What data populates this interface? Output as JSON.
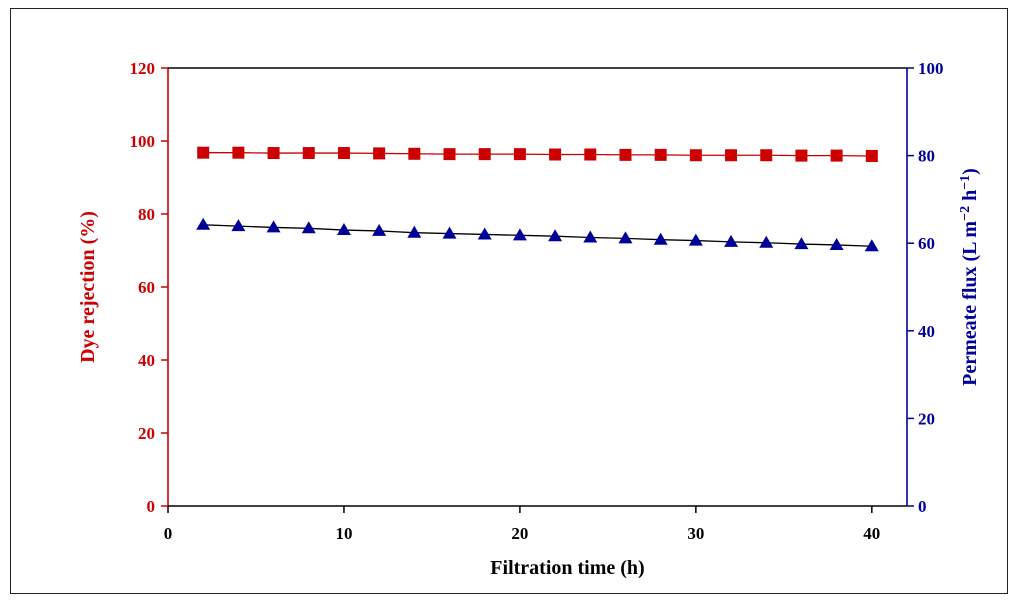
{
  "chart_data": {
    "type": "line",
    "xlabel": "Filtration time (h)",
    "ylabel_left": "Dye rejection (%)",
    "ylabel_right": "Permeate flux (L m",
    "ylabel_right_parts": [
      "Permeate flux (L m",
      "−2",
      " h",
      "−1",
      ")"
    ],
    "xlim": [
      0,
      42
    ],
    "ylim_left": [
      0,
      120
    ],
    "ylim_right": [
      0,
      100
    ],
    "x_ticks": [
      0,
      10,
      20,
      30,
      40
    ],
    "y_ticks_left": [
      0,
      20,
      40,
      60,
      80,
      100,
      120
    ],
    "y_ticks_right": [
      0,
      20,
      40,
      60,
      80,
      100
    ],
    "grid": false,
    "series": [
      {
        "axis": "left",
        "marker": "square",
        "color": "#cc0000",
        "x": [
          2,
          4,
          6,
          8,
          10,
          12,
          14,
          16,
          18,
          20,
          22,
          24,
          26,
          28,
          30,
          32,
          34,
          36,
          38,
          40
        ],
        "values": [
          96.8,
          96.8,
          96.7,
          96.7,
          96.7,
          96.6,
          96.5,
          96.4,
          96.4,
          96.4,
          96.3,
          96.3,
          96.2,
          96.2,
          96.1,
          96.1,
          96.1,
          96.0,
          96.0,
          95.9
        ]
      },
      {
        "axis": "right",
        "marker": "triangle",
        "color": "#000099",
        "x": [
          2,
          4,
          6,
          8,
          10,
          12,
          14,
          16,
          18,
          20,
          22,
          24,
          26,
          28,
          30,
          32,
          34,
          36,
          38,
          40
        ],
        "values": [
          64.2,
          63.9,
          63.6,
          63.4,
          63.0,
          62.8,
          62.4,
          62.2,
          62.0,
          61.8,
          61.6,
          61.3,
          61.1,
          60.8,
          60.6,
          60.3,
          60.1,
          59.8,
          59.6,
          59.3
        ]
      }
    ]
  }
}
